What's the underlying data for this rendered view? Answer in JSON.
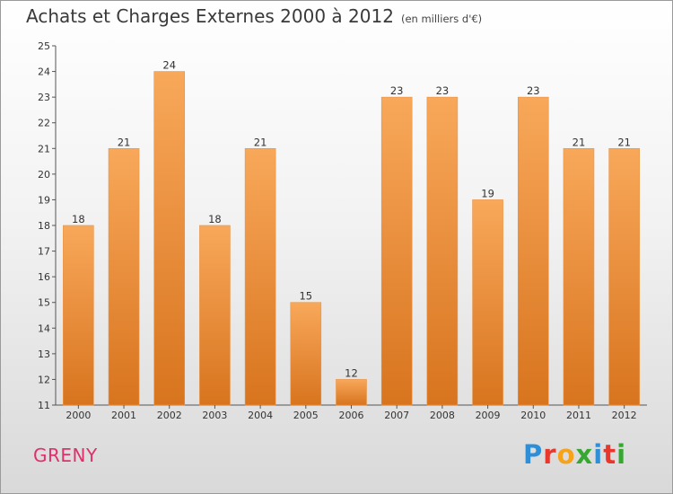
{
  "header": {
    "title": "Achats et Charges Externes 2000 à 2012",
    "unit": "(en milliers d'€)"
  },
  "footer": {
    "commune": "GRENY",
    "logo_text": "Proxiti"
  },
  "colors": {
    "bar_light": "#f8a85a",
    "bar_dark": "#d8741e",
    "commune_text": "#e0306a"
  },
  "chart_data": {
    "type": "bar",
    "title": "Achats et Charges Externes 2000 à 2012",
    "subtitle": "(en milliers d'€)",
    "xlabel": "",
    "ylabel": "",
    "categories": [
      "2000",
      "2001",
      "2002",
      "2003",
      "2004",
      "2005",
      "2006",
      "2007",
      "2008",
      "2009",
      "2010",
      "2011",
      "2012"
    ],
    "values": [
      18,
      21,
      24,
      18,
      21,
      15,
      12,
      23,
      23,
      19,
      23,
      21,
      21
    ],
    "ylim": [
      11,
      25
    ],
    "yticks": [
      11,
      12,
      13,
      14,
      15,
      16,
      17,
      18,
      19,
      20,
      21,
      22,
      23,
      24,
      25
    ],
    "grid": false,
    "legend": "none"
  }
}
